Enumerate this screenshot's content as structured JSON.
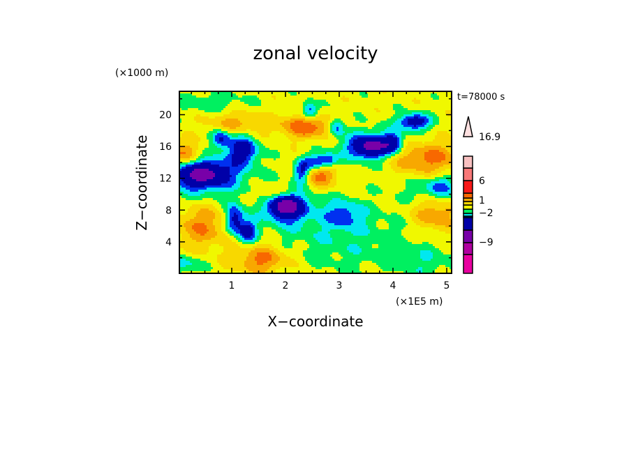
{
  "chart_data": {
    "type": "heatmap",
    "title": "zonal velocity",
    "xlabel": "X−coordinate",
    "ylabel": "Z−coordinate",
    "x_unit": "(×1E5 m)",
    "y_unit": "(×1000 m)",
    "time_label": "t=78000 s",
    "xlim": [
      0,
      5.1
    ],
    "ylim": [
      0,
      23
    ],
    "x_ticks": [
      "1",
      "2",
      "3",
      "4",
      "5"
    ],
    "x_tick_values": [
      1,
      2,
      3,
      4,
      5
    ],
    "y_ticks": [
      "4",
      "8",
      "12",
      "16",
      "20"
    ],
    "y_tick_values": [
      4,
      8,
      12,
      16,
      20
    ],
    "colorbar": {
      "labels": [
        "16.9",
        "6",
        "1",
        "−2",
        "−9"
      ],
      "label_values": [
        16.9,
        6,
        1,
        -2,
        -9
      ],
      "levels": [
        -14,
        -11,
        -9,
        -6,
        -3,
        -2,
        -1,
        0,
        1,
        2,
        3,
        6,
        9,
        12,
        16.9
      ],
      "colors": [
        "#e800a0",
        "#b000a0",
        "#7800a8",
        "#0000a8",
        "#0030f0",
        "#00e8f0",
        "#00f060",
        "#f0f800",
        "#f8d800",
        "#f8a800",
        "#f86800",
        "#f81818",
        "#f87878",
        "#f8c0c0"
      ],
      "extend_color": "#fde0e0"
    },
    "field_base": 0.5,
    "field_features": [
      {
        "x": 0.45,
        "z": 12.5,
        "sx": 0.35,
        "sz": 1.1,
        "v": -6
      },
      {
        "x": 0.5,
        "z": 12.2,
        "sx": 0.6,
        "sz": 2.2,
        "v": -2
      },
      {
        "x": 2.0,
        "z": 8.5,
        "sx": 0.2,
        "sz": 1.0,
        "v": -7
      },
      {
        "x": 2.1,
        "z": 8.3,
        "sx": 0.4,
        "sz": 1.8,
        "v": -2
      },
      {
        "x": 1.05,
        "z": 6.8,
        "sx": 0.12,
        "sz": 1.3,
        "v": -4.5
      },
      {
        "x": 1.3,
        "z": 5.3,
        "sx": 0.12,
        "sz": 1.1,
        "v": -4
      },
      {
        "x": 3.6,
        "z": 16.0,
        "sx": 0.25,
        "sz": 0.9,
        "v": -6
      },
      {
        "x": 3.6,
        "z": 16.0,
        "sx": 0.45,
        "sz": 1.7,
        "v": -2
      },
      {
        "x": 4.4,
        "z": 19.1,
        "sx": 0.2,
        "sz": 0.7,
        "v": -5
      },
      {
        "x": 1.2,
        "z": 15.5,
        "sx": 0.2,
        "sz": 1.3,
        "v": -4.5
      },
      {
        "x": 0.8,
        "z": 17.0,
        "sx": 0.12,
        "sz": 0.8,
        "v": -3.5
      },
      {
        "x": 2.3,
        "z": 12.8,
        "sx": 0.1,
        "sz": 1.0,
        "v": -4
      },
      {
        "x": 2.55,
        "z": 14.0,
        "sx": 0.15,
        "sz": 0.7,
        "v": -4
      },
      {
        "x": 2.8,
        "z": 14.3,
        "sx": 0.12,
        "sz": 0.6,
        "v": -3.5
      },
      {
        "x": 2.45,
        "z": 20.5,
        "sx": 0.1,
        "sz": 0.8,
        "v": -3.5
      },
      {
        "x": 2.95,
        "z": 18.5,
        "sx": 0.1,
        "sz": 0.8,
        "v": -3.5
      },
      {
        "x": 4.0,
        "z": 16.5,
        "sx": 0.12,
        "sz": 0.8,
        "v": -3.5
      },
      {
        "x": 3.1,
        "z": 7.5,
        "sx": 0.25,
        "sz": 1.2,
        "v": -2.5
      },
      {
        "x": 4.9,
        "z": 11.0,
        "sx": 0.2,
        "sz": 1.0,
        "v": -2
      },
      {
        "x": 2.65,
        "z": 12.5,
        "sx": 0.22,
        "sz": 1.2,
        "v": 3
      },
      {
        "x": 4.6,
        "z": 14.5,
        "sx": 0.5,
        "sz": 1.4,
        "v": 3
      },
      {
        "x": 1.55,
        "z": 1.8,
        "sx": 0.35,
        "sz": 1.3,
        "v": 3
      },
      {
        "x": 0.45,
        "z": 6.0,
        "sx": 0.35,
        "sz": 2.0,
        "v": 2.5
      },
      {
        "x": 2.4,
        "z": 18.5,
        "sx": 0.35,
        "sz": 1.0,
        "v": 3.5
      },
      {
        "x": 4.8,
        "z": 7.5,
        "sx": 0.3,
        "sz": 1.5,
        "v": 2.5
      },
      {
        "x": 0.1,
        "z": 15.0,
        "sx": 0.25,
        "sz": 1.2,
        "v": 3
      },
      {
        "x": 1.1,
        "z": 19.0,
        "sx": 0.4,
        "sz": 1.0,
        "v": 2
      },
      {
        "x": 3.1,
        "z": 4.5,
        "sx": 0.9,
        "sz": 3.0,
        "v": -1.3
      },
      {
        "x": 4.6,
        "z": 1.5,
        "sx": 0.4,
        "sz": 1.5,
        "v": -1.2
      },
      {
        "x": 0.6,
        "z": 21.5,
        "sx": 0.5,
        "sz": 1.0,
        "v": -1.2
      },
      {
        "x": 4.7,
        "z": 10.5,
        "sx": 0.4,
        "sz": 1.2,
        "v": -1.2
      },
      {
        "x": 0.1,
        "z": 1.2,
        "sx": 0.25,
        "sz": 0.8,
        "v": -2
      },
      {
        "x": 1.8,
        "z": 10.0,
        "sx": 0.25,
        "sz": 0.8,
        "v": 2
      }
    ]
  }
}
